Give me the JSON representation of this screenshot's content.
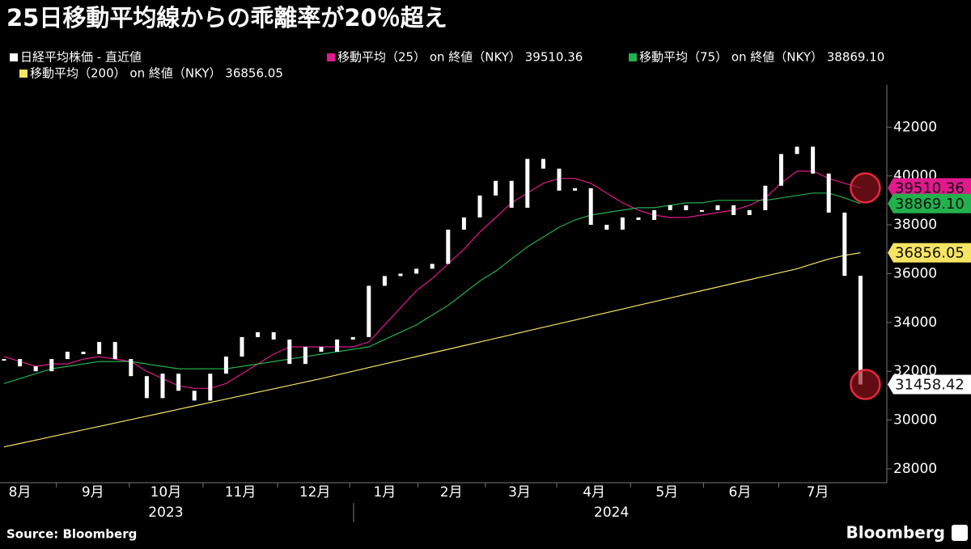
{
  "chart_data": {
    "type": "candlestick",
    "title": "25日移動平均線からの乖離率が20％超え",
    "source": "Source:  Bloomberg",
    "brand": "Bloomberg",
    "categories": [
      null,
      null,
      null,
      null,
      null,
      null,
      null,
      null,
      null,
      null,
      null,
      null,
      null,
      null,
      null,
      null,
      null,
      null,
      null,
      null,
      null,
      null,
      null,
      null,
      null,
      null,
      null,
      null,
      null,
      null,
      null,
      null,
      null,
      null,
      null,
      null,
      null,
      null,
      null,
      null,
      null,
      null,
      null,
      null,
      null,
      null,
      null,
      null,
      null,
      null,
      null,
      null,
      null,
      null,
      null
    ],
    "xticks": [
      {
        "value": 1.0,
        "label": "8月"
      },
      {
        "value": 5.6,
        "label": "9月"
      },
      {
        "value": 10.2,
        "label": "10月"
      },
      {
        "value": 14.9,
        "label": "11月"
      },
      {
        "value": 19.6,
        "label": "12月"
      },
      {
        "value": 24.0,
        "label": "1月"
      },
      {
        "value": 28.2,
        "label": "2月"
      },
      {
        "value": 32.5,
        "label": "3月"
      },
      {
        "value": 37.2,
        "label": "4月"
      },
      {
        "value": 41.8,
        "label": "5月"
      },
      {
        "value": 46.4,
        "label": "6月"
      },
      {
        "value": 51.3,
        "label": "7月"
      }
    ],
    "x_group_labels": [
      {
        "value": 10.2,
        "label": "2023"
      },
      {
        "value": 38.3,
        "label": "2024"
      }
    ],
    "ylim": [
      27500,
      43500
    ],
    "yticks": [
      28000,
      30000,
      32000,
      34000,
      36000,
      38000,
      40000,
      42000
    ],
    "series": [
      {
        "name": "日経平均株価 - 直近値",
        "color": "#ffffff",
        "kind": "candle",
        "values": [
          32500,
          32200,
          32000,
          32500,
          32800,
          32700,
          33200,
          32500,
          31800,
          30900,
          31900,
          31200,
          30800,
          31900,
          32600,
          33400,
          33600,
          33300,
          32300,
          33000,
          32800,
          33300,
          33400,
          35500,
          35900,
          36000,
          36200,
          36400,
          37800,
          38300,
          39200,
          39800,
          38700,
          40700,
          40300,
          39400,
          39500,
          38000,
          37800,
          38300,
          38200,
          38600,
          38800,
          38600,
          38600,
          38800,
          38400,
          38600,
          39600,
          40900,
          41200,
          40100,
          38500,
          35909.7,
          31458.42
        ],
        "value_labels": [
          null,
          null,
          null,
          null,
          null,
          null,
          null,
          null,
          null,
          null,
          null,
          null,
          null,
          null,
          null,
          null,
          null,
          null,
          null,
          null,
          null,
          null,
          null,
          null,
          null,
          null,
          null,
          null,
          null,
          null,
          null,
          null,
          null,
          null,
          null,
          null,
          null,
          null,
          null,
          null,
          null,
          null,
          null,
          null,
          null,
          null,
          null,
          null,
          null,
          null,
          null,
          null,
          null,
          null,
          "31458.42"
        ]
      },
      {
        "name": "移動平均（25） on 終値（NKY） 39510.36",
        "color": "#e0198c",
        "kind": "line",
        "values": [
          32600,
          32400,
          32200,
          32300,
          32300,
          32500,
          32600,
          32500,
          32400,
          32000,
          31700,
          31400,
          31300,
          31300,
          31500,
          31900,
          32300,
          32700,
          33000,
          33000,
          33000,
          33000,
          33000,
          33200,
          33900,
          34600,
          35300,
          35800,
          36400,
          37000,
          37700,
          38300,
          38900,
          39300,
          39700,
          39900,
          39900,
          39700,
          39300,
          38900,
          38600,
          38400,
          38300,
          38300,
          38400,
          38500,
          38600,
          38800,
          39100,
          39700,
          40200,
          40200,
          39900,
          39700,
          39510.36
        ],
        "value_labels": [
          null,
          null,
          null,
          null,
          null,
          null,
          null,
          null,
          null,
          null,
          null,
          null,
          null,
          null,
          null,
          null,
          null,
          null,
          null,
          null,
          null,
          null,
          null,
          null,
          null,
          null,
          null,
          null,
          null,
          null,
          null,
          null,
          null,
          null,
          null,
          null,
          null,
          null,
          null,
          null,
          null,
          null,
          null,
          null,
          null,
          null,
          null,
          null,
          null,
          null,
          null,
          null,
          null,
          null,
          "39510.36"
        ]
      },
      {
        "name": "移動平均（75） on 終値（NKY） 38869.10",
        "color": "#22b14c",
        "kind": "line",
        "values": [
          31500,
          31700,
          31900,
          32100,
          32200,
          32300,
          32400,
          32400,
          32400,
          32300,
          32200,
          32100,
          32100,
          32100,
          32100,
          32200,
          32300,
          32400,
          32500,
          32600,
          32700,
          32800,
          32900,
          33000,
          33300,
          33600,
          33900,
          34300,
          34700,
          35200,
          35700,
          36100,
          36600,
          37100,
          37500,
          37900,
          38200,
          38400,
          38500,
          38600,
          38700,
          38700,
          38800,
          38900,
          38900,
          39000,
          39000,
          39000,
          39000,
          39100,
          39200,
          39300,
          39300,
          39100,
          38869.1
        ],
        "value_labels": [
          null,
          null,
          null,
          null,
          null,
          null,
          null,
          null,
          null,
          null,
          null,
          null,
          null,
          null,
          null,
          null,
          null,
          null,
          null,
          null,
          null,
          null,
          null,
          null,
          null,
          null,
          null,
          null,
          null,
          null,
          null,
          null,
          null,
          null,
          null,
          null,
          null,
          null,
          null,
          null,
          null,
          null,
          null,
          null,
          null,
          null,
          null,
          null,
          null,
          null,
          null,
          null,
          null,
          null,
          "38869.10"
        ]
      },
      {
        "name": "移動平均（200） on 終値（NKY） 36856.05",
        "color": "#f7e463",
        "kind": "line",
        "values": [
          28900,
          29040,
          29180,
          29320,
          29460,
          29600,
          29740,
          29880,
          30020,
          30160,
          30300,
          30440,
          30580,
          30720,
          30860,
          31000,
          31140,
          31280,
          31420,
          31560,
          31700,
          31850,
          32000,
          32150,
          32300,
          32450,
          32600,
          32750,
          32900,
          33050,
          33200,
          33350,
          33500,
          33650,
          33800,
          33950,
          34100,
          34250,
          34400,
          34550,
          34700,
          34850,
          35000,
          35150,
          35300,
          35450,
          35600,
          35750,
          35900,
          36050,
          36200,
          36400,
          36600,
          36750,
          36856.05
        ],
        "value_labels": [
          null,
          null,
          null,
          null,
          null,
          null,
          null,
          null,
          null,
          null,
          null,
          null,
          null,
          null,
          null,
          null,
          null,
          null,
          null,
          null,
          null,
          null,
          null,
          null,
          null,
          null,
          null,
          null,
          null,
          null,
          null,
          null,
          null,
          null,
          null,
          null,
          null,
          null,
          null,
          null,
          null,
          null,
          null,
          null,
          null,
          null,
          null,
          null,
          null,
          null,
          null,
          null,
          null,
          null,
          "36856.05"
        ]
      }
    ]
  }
}
